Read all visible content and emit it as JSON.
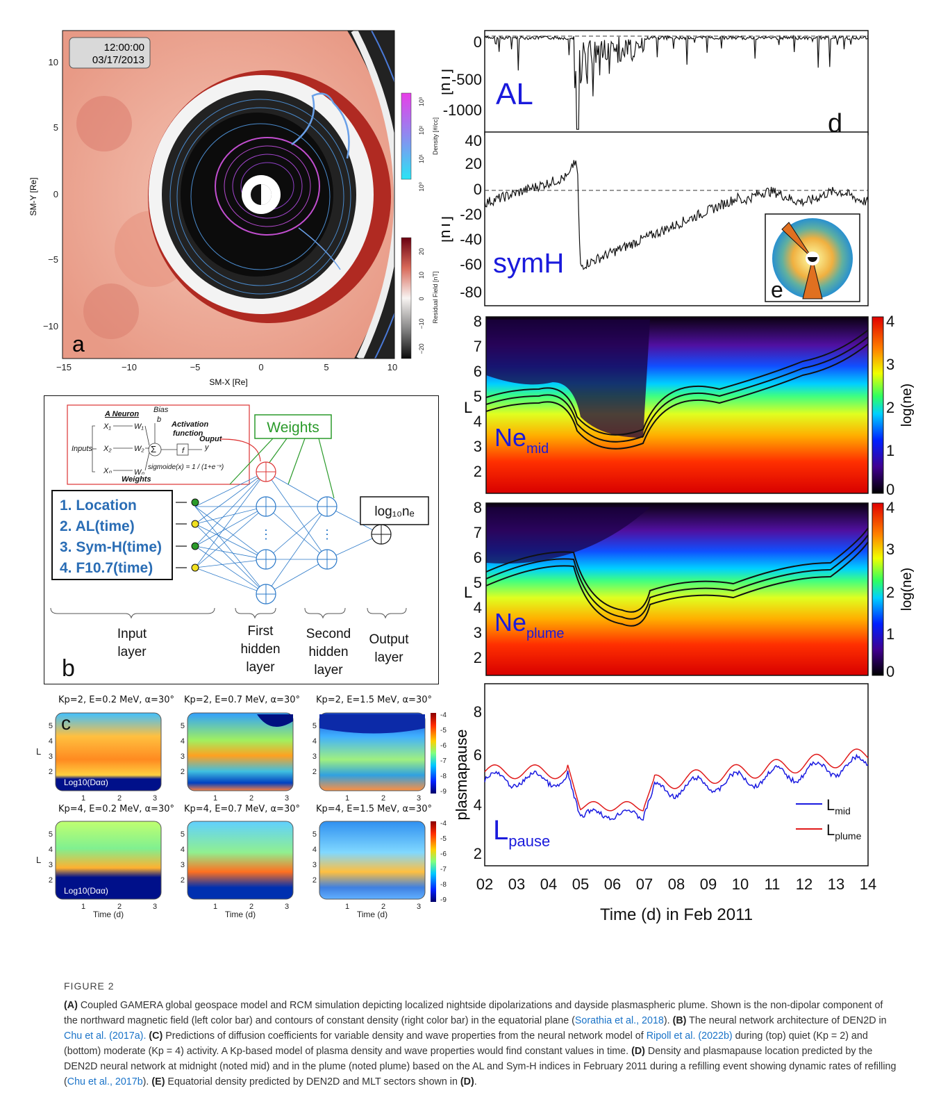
{
  "panel_a": {
    "time": "12:00:00",
    "date": "03/17/2013",
    "letter": "a",
    "xlabel": "SM-X [Re]",
    "ylabel": "SM-Y [Re]",
    "xticks": [
      "−15",
      "−10",
      "−5",
      "0",
      "5",
      "10"
    ],
    "yticks": [
      "10",
      "5",
      "0",
      "−5",
      "−10"
    ],
    "cb_density_label": "Density [#/cc]",
    "cb_density_ticks": [
      "10³",
      "10²",
      "10¹",
      "10⁰"
    ],
    "cb_resid_label": "Residual Field [nT]",
    "cb_resid_ticks": [
      "20",
      "10",
      "0",
      "−10",
      "−20"
    ]
  },
  "panel_b": {
    "letter": "b",
    "neuron_title": "A Neuron",
    "bias": "Bias",
    "bias_b": "b",
    "activation": "Activation",
    "function": "function",
    "f": "f",
    "sigma": "Σ",
    "ouput": "Ouput",
    "y": "y",
    "inputs": "Inputs",
    "x1": "X₁",
    "x2": "X₂",
    "xn": "Xₙ",
    "w1": "W₁",
    "w2": "W₂",
    "wn": "Wₙ",
    "weights_small": "Weights",
    "sigmoid": "sigmoide(x) = 1 / (1+e⁻ˣ)",
    "weights": "Weights",
    "inputs_list": [
      "1. Location",
      "2. AL(time)",
      "3. Sym-H(time)",
      "4. F10.7(time)"
    ],
    "output": "log₁₀nₑ",
    "layers": [
      "Input\nlayer",
      "First\nhidden\nlayer",
      "Second\nhidden\nlayer",
      "Output\nlayer"
    ]
  },
  "panel_c": {
    "letter": "c",
    "titles": [
      "Kp=2, E=0.2 MeV, α=30°",
      "Kp=2, E=0.7 MeV, α=30°",
      "Kp=2, E=1.5 MeV, α=30°",
      "Kp=4, E=0.2 MeV, α=30°",
      "Kp=4, E=0.7 MeV, α=30°",
      "Kp=4, E=1.5 MeV, α=30°"
    ],
    "inner_label": "Log10(Dαα)",
    "xlabel": "Time (d)",
    "ylabel": "L",
    "xticks": [
      "1",
      "2",
      "3"
    ],
    "yticks": [
      "5",
      "4",
      "3",
      "2"
    ],
    "cb_ticks": [
      "-4",
      "-5",
      "-6",
      "-7",
      "-8",
      "-9"
    ]
  },
  "panel_d": {
    "letter": "d",
    "al_label": "AL",
    "al_unit": "[nT]",
    "al_ticks": [
      "0",
      "-500",
      "-1000"
    ],
    "symh_label": "symH",
    "symh_unit": "[nT]",
    "symh_ticks": [
      "40",
      "20",
      "0",
      "-20",
      "-40",
      "-60",
      "-80"
    ],
    "e_letter": "e",
    "ne_mid": "Ne",
    "ne_mid_sub": "mid",
    "ne_plume": "Ne",
    "ne_plume_sub": "plume",
    "L": "L",
    "L_ticks": [
      "8",
      "7",
      "6",
      "5",
      "4",
      "3",
      "2"
    ],
    "cb_label": "log(ne)",
    "cb_ticks": [
      "4",
      "3",
      "2",
      "1",
      "0"
    ],
    "pp_ylabel": "plasmapause",
    "pp_ticks": [
      "8",
      "6",
      "4",
      "2"
    ],
    "lpause": "L",
    "lpause_sub": "pause",
    "legend_mid": "L",
    "legend_mid_sub": "mid",
    "legend_plume": "L",
    "legend_plume_sub": "plume",
    "xticks": [
      "02",
      "03",
      "04",
      "05",
      "06",
      "07",
      "08",
      "09",
      "10",
      "11",
      "12",
      "13",
      "14"
    ],
    "xlabel": "Time (d) in Feb 2011"
  },
  "caption": {
    "heading": "FIGURE 2",
    "A": "(A)",
    "A_text": " Coupled GAMERA global geospace model and RCM simulation depicting localized nightside dipolarizations and dayside plasmaspheric plume. Shown is the non-dipolar component of the northward magnetic field (left color bar) and contours of constant density (right color bar) in the equatorial plane (",
    "A_ref": "Sorathia et al., 2018",
    "A_end": "). ",
    "B": "(B)",
    "B_text": " The neural network architecture of DEN2D in ",
    "B_ref": "Chu et al. (2017a).",
    "B_end": " ",
    "C": "(C)",
    "C_text": " Predictions of diffusion coefficients for variable density and wave properties from the neural network model of ",
    "C_ref": "Ripoll et al. (2022b)",
    "C_end": " during (top) quiet (Kp = 2) and (bottom) moderate (Kp = 4) activity. A Kp-based model of plasma density and wave properties would find constant values in time. ",
    "D": "(D)",
    "D_text": " Density and plasmapause location predicted by the DEN2D neural network at midnight (noted mid) and in the plume (noted plume) based on the AL and Sym-H indices in February 2011 during a refilling event showing dynamic rates of refilling (",
    "D_ref": "Chu et al., 2017b",
    "D_end": "). ",
    "E": "(E)",
    "E_text": " Equatorial density predicted by DEN2D and MLT sectors shown in ",
    "E_ref": "(D)",
    "E_end": "."
  }
}
